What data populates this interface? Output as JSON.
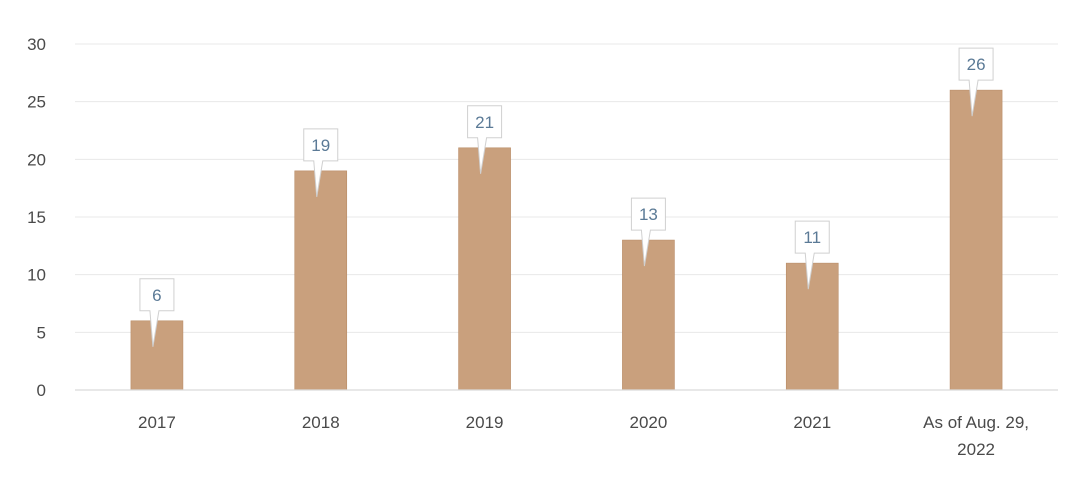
{
  "chart_data": {
    "type": "bar",
    "categories": [
      "2017",
      "2018",
      "2019",
      "2020",
      "2021",
      "As of Aug. 29, 2022"
    ],
    "category_lines": [
      [
        "2017"
      ],
      [
        "2018"
      ],
      [
        "2019"
      ],
      [
        "2020"
      ],
      [
        "2021"
      ],
      [
        "As of Aug. 29,",
        "2022"
      ]
    ],
    "values": [
      6,
      19,
      21,
      13,
      11,
      26
    ],
    "ylim": [
      0,
      30
    ],
    "yticks": [
      0,
      5,
      10,
      15,
      20,
      25,
      30
    ],
    "grid": true,
    "data_labels": true,
    "colors": {
      "bar": "#c9a07d",
      "bar_edge": "#b98c67",
      "grid": "#e8e8e8",
      "axis": "#d9d9d9",
      "tick_text": "#4a4a4a",
      "label_text": "#5b7a96",
      "callout_fill": "#ffffff",
      "callout_stroke": "#d0d0d0"
    }
  }
}
